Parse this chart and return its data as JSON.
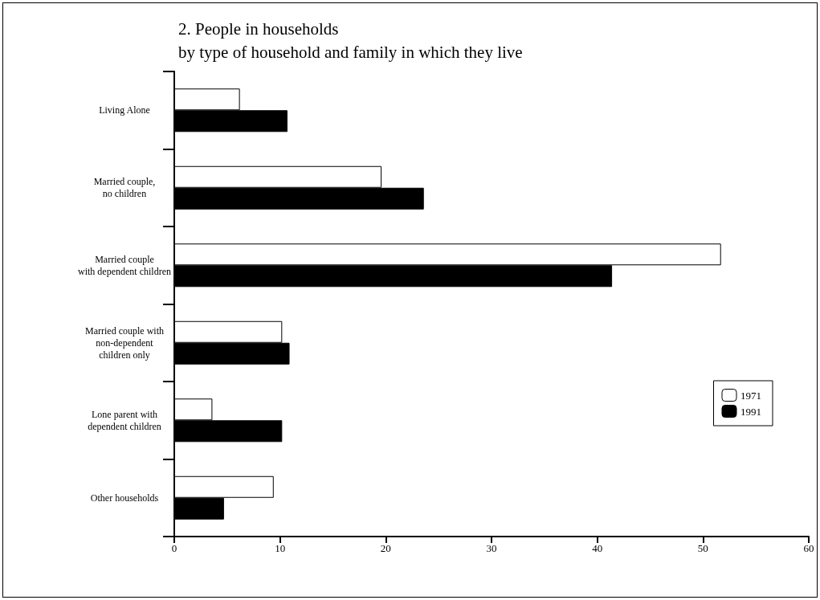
{
  "chart_data": {
    "type": "bar",
    "orientation": "horizontal",
    "title": "2. People in households\nby type of household and family in which they live",
    "categories": [
      "Living Alone",
      "Married couple,\nno children",
      "Married couple\nwith dependent children",
      "Married couple with\nnon-dependent\nchildren only",
      "Lone parent with\ndependent children",
      "Other households"
    ],
    "series": [
      {
        "name": "1971",
        "color": "#ffffff",
        "values": [
          6.2,
          19.6,
          51.7,
          10.2,
          3.6,
          9.4
        ]
      },
      {
        "name": "1991",
        "color": "#000000",
        "values": [
          10.7,
          23.6,
          41.4,
          10.9,
          10.2,
          4.7
        ]
      }
    ],
    "xlim": [
      0,
      60
    ],
    "xticks": [
      0,
      10,
      20,
      30,
      40,
      50,
      60
    ],
    "grid": false,
    "legend": "right"
  }
}
